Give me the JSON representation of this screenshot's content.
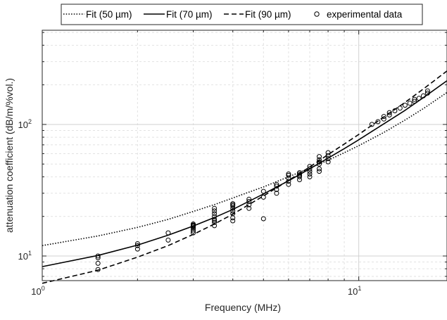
{
  "chart_data": {
    "type": "scatter",
    "xlabel": "Frequency (MHz)",
    "ylabel": "attenuation coefficient (dB/m/%vol.)",
    "xscale": "log",
    "yscale": "log",
    "xlim": [
      1,
      19
    ],
    "ylim": [
      6.5,
      520
    ],
    "grid": true,
    "legend_position": "top",
    "x_ticks": [
      {
        "value": 1,
        "base": "10",
        "exp": "0"
      },
      {
        "value": 10,
        "base": "10",
        "exp": "1"
      }
    ],
    "y_ticks": [
      {
        "value": 10,
        "base": "10",
        "exp": "1"
      },
      {
        "value": 100,
        "base": "10",
        "exp": "2"
      }
    ],
    "series": [
      {
        "name": "Fit (50 µm)",
        "kind": "line",
        "style": "dotted",
        "color": "#000000",
        "x": [
          1,
          1.5,
          2,
          2.5,
          3,
          3.5,
          4,
          5,
          6,
          7,
          8,
          9,
          10,
          12,
          14,
          16,
          19
        ],
        "y": [
          12,
          14.2,
          16.5,
          19,
          21.8,
          24.6,
          27.6,
          33.5,
          40,
          46.5,
          53.5,
          61,
          69,
          87,
          108,
          132,
          175
        ]
      },
      {
        "name": "Fit (70 µm)",
        "kind": "line",
        "style": "solid",
        "color": "#000000",
        "x": [
          1,
          1.5,
          2,
          2.5,
          3,
          3.5,
          4,
          5,
          6,
          7,
          8,
          9,
          10,
          12,
          14,
          16,
          19
        ],
        "y": [
          8.3,
          10.1,
          12.1,
          14.4,
          16.9,
          19.6,
          22.6,
          29.6,
          37.3,
          46,
          55.5,
          65.5,
          76.5,
          101,
          128,
          160,
          215
        ]
      },
      {
        "name": "Fit (90 µm)",
        "kind": "line",
        "style": "dashed",
        "color": "#000000",
        "x": [
          1,
          1.5,
          2,
          2.5,
          3,
          3.5,
          4,
          5,
          6,
          7,
          8,
          9,
          10,
          12,
          14,
          16,
          19
        ],
        "y": [
          6.2,
          7.8,
          9.8,
          12,
          14.6,
          17.5,
          20.8,
          28.6,
          37.5,
          47.5,
          59,
          71,
          84,
          114,
          147,
          186,
          255
        ]
      },
      {
        "name": "experimental data",
        "kind": "points",
        "marker": "circle",
        "color": "#000000",
        "x": [
          1.5,
          1.5,
          1.5,
          1.5,
          2,
          2,
          2,
          2.5,
          2.5,
          3,
          3,
          3,
          3,
          3,
          3,
          3,
          3,
          3.5,
          3.5,
          3.5,
          3.5,
          3.5,
          3.5,
          3.5,
          3.5,
          4,
          4,
          4,
          4,
          4,
          4,
          4,
          4,
          4.5,
          4.5,
          4.5,
          4.5,
          5,
          5,
          5,
          5.5,
          5.5,
          5.5,
          5.5,
          6,
          6,
          6,
          6,
          6,
          6.5,
          6.5,
          6.5,
          6.5,
          6.5,
          7,
          7,
          7,
          7,
          7,
          7.5,
          7.5,
          7.5,
          7.5,
          7.5,
          7.5,
          8,
          8,
          8,
          8,
          11,
          11.5,
          12,
          12,
          12.5,
          12.5,
          13,
          13.5,
          14,
          14.5,
          15,
          15,
          15.5,
          16,
          16.5,
          16.5
        ],
        "y": [
          7.9,
          8.8,
          9.7,
          10,
          11.3,
          12,
          12.4,
          13.2,
          15,
          15,
          15.5,
          16,
          16.4,
          16.8,
          17,
          17.2,
          17.5,
          17,
          18,
          18.5,
          19,
          20,
          21,
          22,
          23,
          18.5,
          19.5,
          21,
          22,
          23,
          24,
          24.5,
          25,
          23,
          24.5,
          26,
          27,
          19.2,
          28,
          31,
          30,
          32,
          34,
          35,
          35,
          37,
          39,
          41,
          42,
          38,
          40,
          41,
          42,
          43,
          40,
          42,
          44,
          46,
          48,
          44,
          46,
          50,
          52,
          54,
          57,
          52,
          55,
          58,
          61,
          100,
          105,
          110,
          115,
          118,
          123,
          127,
          133,
          140,
          145,
          150,
          155,
          158,
          165,
          173,
          180
        ]
      }
    ]
  }
}
